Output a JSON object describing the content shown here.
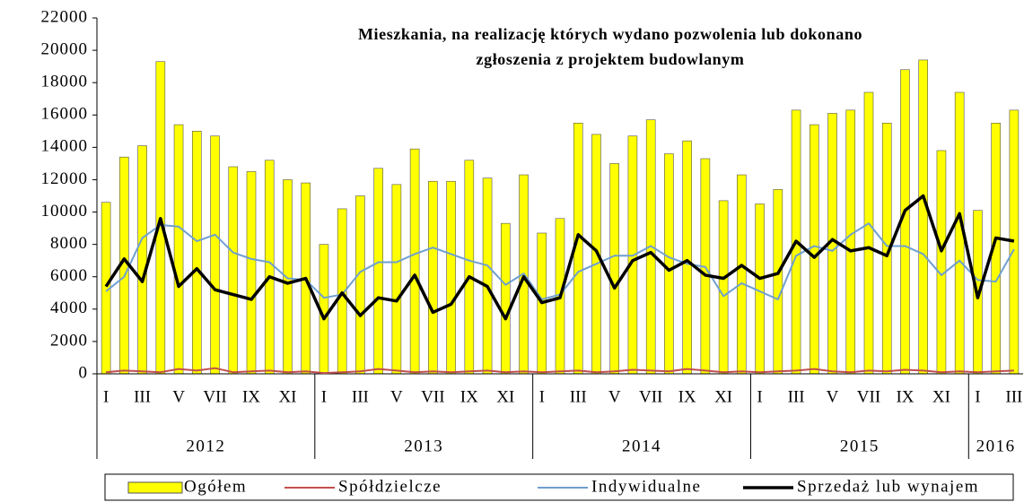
{
  "chart_data": {
    "type": "bar+line",
    "title": "Mieszkania, na realizację których wydano pozwolenia lub dokonano zgłoszenia z projektem budowlanym",
    "categories": [
      "I",
      null,
      "III",
      null,
      "V",
      null,
      "VII",
      null,
      "IX",
      null,
      "XI",
      null,
      "I",
      null,
      "III",
      null,
      "V",
      null,
      "VII",
      null,
      "IX",
      null,
      "XI",
      null,
      "I",
      null,
      "III",
      null,
      "V",
      null,
      "VII",
      null,
      "IX",
      null,
      "XI",
      null,
      "I",
      null,
      "III",
      null,
      "V",
      null,
      "VII",
      null,
      "IX",
      null,
      "XI",
      null,
      "I",
      null,
      "III"
    ],
    "years": [
      "2012",
      "2013",
      "2014",
      "2015",
      "2016"
    ],
    "ylim": [
      0,
      22000
    ],
    "yticks": [
      0,
      2000,
      4000,
      6000,
      8000,
      10000,
      12000,
      14000,
      16000,
      18000,
      20000,
      22000
    ],
    "grid": false,
    "legend": "bottom",
    "series": [
      {
        "name": "Ogółem",
        "type": "bar",
        "color": "#ffff00",
        "values": [
          10600,
          13400,
          14100,
          19300,
          15400,
          15000,
          14700,
          12800,
          12500,
          13200,
          12000,
          11800,
          8000,
          10200,
          11000,
          12700,
          11700,
          13900,
          11900,
          11900,
          13200,
          12100,
          9300,
          12300,
          8700,
          9600,
          15500,
          14800,
          13000,
          14700,
          15700,
          13600,
          14400,
          13300,
          10700,
          12300,
          10500,
          11400,
          16300,
          15400,
          16100,
          16300,
          17400,
          15500,
          18800,
          19400,
          13800,
          17400,
          10100,
          15500,
          16300
        ]
      },
      {
        "name": "Spółdzielcze",
        "type": "line",
        "color": "#c0504d",
        "values": [
          100,
          200,
          150,
          100,
          300,
          200,
          350,
          100,
          150,
          200,
          100,
          150,
          50,
          100,
          150,
          300,
          200,
          100,
          150,
          100,
          150,
          200,
          100,
          150,
          100,
          150,
          200,
          100,
          150,
          250,
          200,
          150,
          300,
          200,
          100,
          150,
          100,
          150,
          200,
          300,
          150,
          100,
          200,
          150,
          250,
          200,
          100,
          150,
          100,
          150,
          200
        ]
      },
      {
        "name": "Indywidualne",
        "type": "line",
        "color": "#6f9fd0",
        "values": [
          5100,
          6000,
          8400,
          9200,
          9100,
          8200,
          8600,
          7500,
          7100,
          6900,
          5900,
          5800,
          4700,
          4900,
          6300,
          6900,
          6900,
          7400,
          7800,
          7400,
          7000,
          6700,
          5500,
          6200,
          4600,
          4900,
          6300,
          6800,
          7300,
          7300,
          7900,
          7200,
          6800,
          6600,
          4800,
          5600,
          5100,
          4600,
          7300,
          7900,
          7600,
          8600,
          9300,
          7900,
          7900,
          7400,
          6100,
          7000,
          5800,
          5700,
          7700
        ]
      },
      {
        "name": "Sprzedaż lub wynajem",
        "type": "line",
        "color": "#000000",
        "values": [
          5400,
          7100,
          5700,
          9600,
          5400,
          6500,
          5200,
          4900,
          4600,
          6000,
          5600,
          5900,
          3400,
          5000,
          3600,
          4700,
          4500,
          6100,
          3800,
          4300,
          6000,
          5400,
          3400,
          6000,
          4400,
          4700,
          8600,
          7600,
          5300,
          7000,
          7500,
          6400,
          7000,
          6100,
          5900,
          6700,
          5900,
          6200,
          8200,
          7200,
          8300,
          7600,
          7800,
          7300,
          10100,
          11000,
          7600,
          9900,
          4700,
          8400,
          8200
        ]
      }
    ]
  }
}
